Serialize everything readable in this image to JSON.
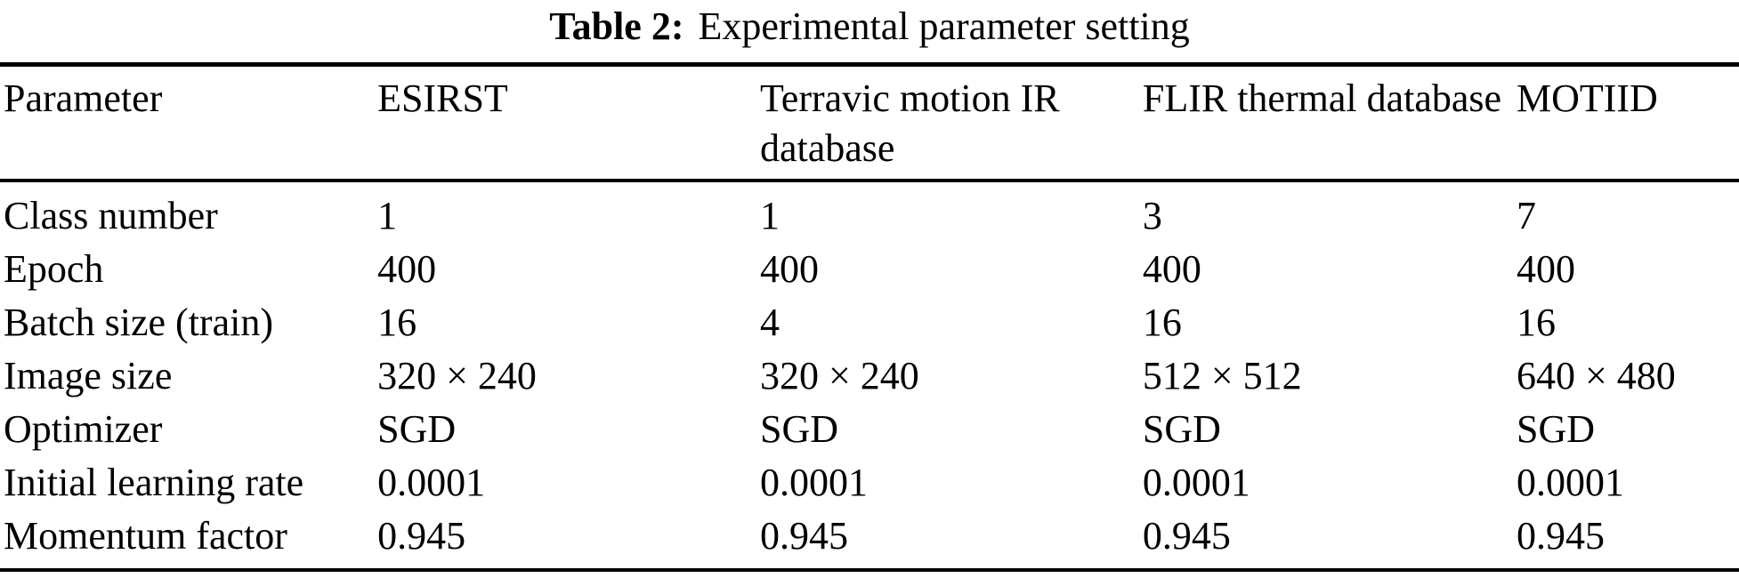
{
  "caption": {
    "label": "Table 2:",
    "text": "Experimental parameter setting"
  },
  "table": {
    "columns": [
      "Parameter",
      "ESIRST",
      "Terravic motion IR database",
      "FLIR thermal database",
      "MOTIID"
    ],
    "rows": [
      [
        "Class number",
        "1",
        "1",
        "3",
        "7"
      ],
      [
        "Epoch",
        "400",
        "400",
        "400",
        "400"
      ],
      [
        "Batch size (train)",
        "16",
        "4",
        "16",
        "16"
      ],
      [
        "Image size",
        "320 × 240",
        "320 × 240",
        "512 × 512",
        "640 × 480"
      ],
      [
        "Optimizer",
        "SGD",
        "SGD",
        "SGD",
        "SGD"
      ],
      [
        "Initial learning rate",
        "0.0001",
        "0.0001",
        "0.0001",
        "0.0001"
      ],
      [
        "Momentum factor",
        "0.945",
        "0.945",
        "0.945",
        "0.945"
      ]
    ]
  },
  "colors": {
    "text": "#000000",
    "background": "#ffffff",
    "rule": "#000000"
  }
}
